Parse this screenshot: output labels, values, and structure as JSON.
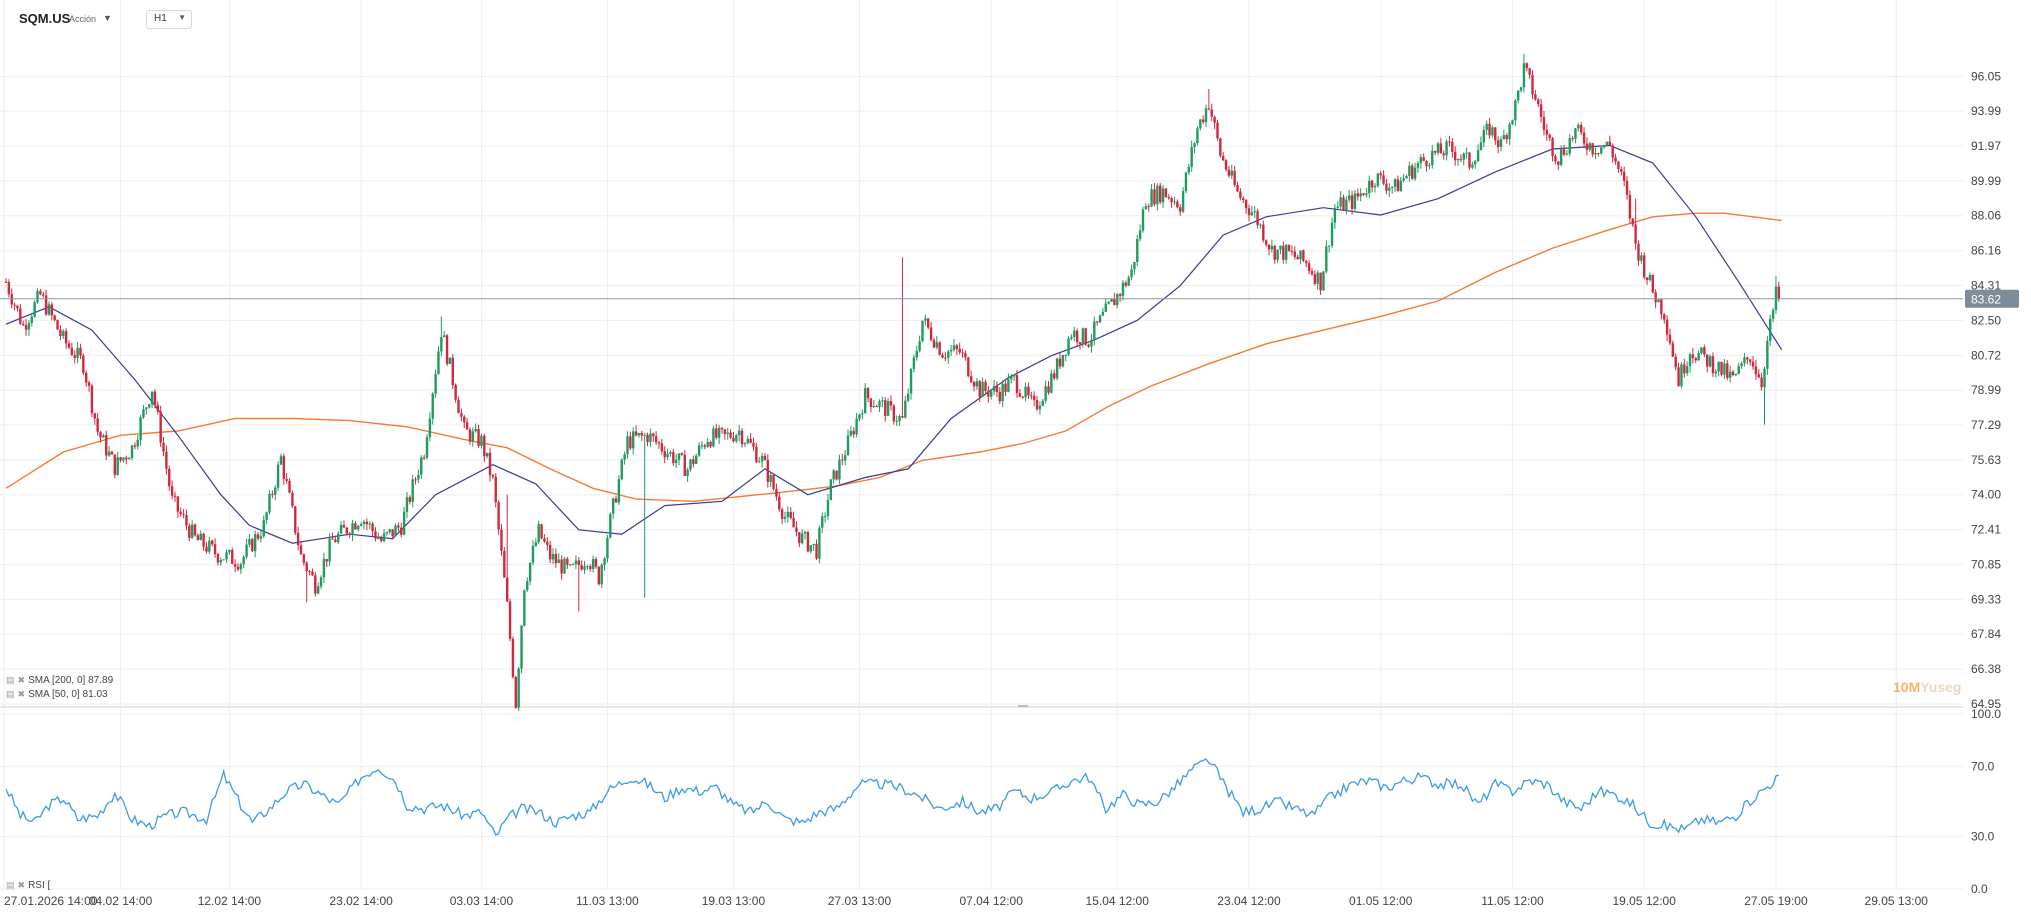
{
  "header": {
    "symbol": "SQM.US",
    "symbol_type": "Acción",
    "timeframe": "H1"
  },
  "watermark": {
    "prefix": "10M",
    "suffix": "Yuseg"
  },
  "colors": {
    "bull": "#1f9b5f",
    "bear": "#d1283e",
    "sma200": "#f47b35",
    "sma50": "#3b3b8f",
    "rsi": "#3d9ae8",
    "price_tag_bg": "#7f8c99",
    "grid": "#eeeeee"
  },
  "chart_data": [
    {
      "type": "candlestick",
      "title": "",
      "x_ticks": [
        "27.01.2026 14:00",
        "04.02 14:00",
        "12.02 14:00",
        "23.02 14:00",
        "03.03 14:00",
        "11.03 13:00",
        "19.03 13:00",
        "27.03 13:00",
        "07.04 12:00",
        "15.04 12:00",
        "23.04 12:00",
        "01.05 12:00",
        "11.05 12:00",
        "19.05 12:00",
        "27.05 19:00",
        "29.05 13:00"
      ],
      "y_ticks": [
        96.05,
        93.99,
        91.97,
        89.99,
        88.06,
        86.16,
        84.31,
        82.5,
        80.72,
        78.99,
        77.29,
        75.63,
        74.0,
        72.41,
        70.85,
        69.33,
        67.84,
        66.38,
        64.95
      ],
      "ylim": [
        64.95,
        97.4
      ],
      "log_scale": true,
      "last_price": 83.62,
      "grid": true,
      "close_path": [
        [
          0,
          84.5
        ],
        [
          6,
          82.2
        ],
        [
          12,
          83.8
        ],
        [
          20,
          81.5
        ],
        [
          27,
          80.3
        ],
        [
          32,
          77.0
        ],
        [
          38,
          75.3
        ],
        [
          44,
          76.2
        ],
        [
          51,
          79.1
        ],
        [
          58,
          73.7
        ],
        [
          66,
          72.0
        ],
        [
          74,
          71.3
        ],
        [
          82,
          71.0
        ],
        [
          90,
          72.6
        ],
        [
          96,
          75.7
        ],
        [
          103,
          71.2
        ],
        [
          108,
          70.0
        ],
        [
          114,
          71.9
        ],
        [
          124,
          73.0
        ],
        [
          131,
          71.9
        ],
        [
          138,
          72.6
        ],
        [
          146,
          76.1
        ],
        [
          152,
          82.0
        ],
        [
          160,
          77.0
        ],
        [
          166,
          76.5
        ],
        [
          170,
          74.6
        ],
        [
          175,
          69.0
        ],
        [
          178,
          65.0
        ],
        [
          181,
          70.0
        ],
        [
          186,
          72.3
        ],
        [
          190,
          71.2
        ],
        [
          197,
          70.5
        ],
        [
          203,
          71.2
        ],
        [
          207,
          70.3
        ],
        [
          211,
          72.8
        ],
        [
          217,
          76.5
        ],
        [
          224,
          76.8
        ],
        [
          231,
          76.0
        ],
        [
          238,
          75.2
        ],
        [
          245,
          76.7
        ],
        [
          251,
          76.7
        ],
        [
          256,
          77.0
        ],
        [
          264,
          75.6
        ],
        [
          272,
          73.0
        ],
        [
          278,
          72.0
        ],
        [
          283,
          71.5
        ],
        [
          288,
          74.4
        ],
        [
          294,
          76.4
        ],
        [
          300,
          78.7
        ],
        [
          306,
          78.2
        ],
        [
          313,
          77.5
        ],
        [
          320,
          82.5
        ],
        [
          327,
          80.9
        ],
        [
          333,
          80.9
        ],
        [
          340,
          79.0
        ],
        [
          347,
          78.9
        ],
        [
          352,
          79.5
        ],
        [
          359,
          78.1
        ],
        [
          366,
          79.8
        ],
        [
          372,
          81.9
        ],
        [
          378,
          81.5
        ],
        [
          384,
          82.9
        ],
        [
          389,
          84.0
        ],
        [
          393,
          85.0
        ],
        [
          398,
          89.0
        ],
        [
          404,
          89.4
        ],
        [
          410,
          88.7
        ],
        [
          416,
          93.0
        ],
        [
          420,
          94.5
        ],
        [
          424,
          91.5
        ],
        [
          430,
          89.3
        ],
        [
          436,
          88.1
        ],
        [
          442,
          86.2
        ],
        [
          448,
          86.0
        ],
        [
          454,
          85.5
        ],
        [
          459,
          84.5
        ],
        [
          464,
          88.5
        ],
        [
          471,
          88.9
        ],
        [
          478,
          90.2
        ],
        [
          485,
          89.6
        ],
        [
          490,
          90.5
        ],
        [
          497,
          91.4
        ],
        [
          504,
          91.8
        ],
        [
          511,
          91.0
        ],
        [
          518,
          93.0
        ],
        [
          522,
          92.0
        ],
        [
          527,
          94.3
        ],
        [
          530,
          96.5
        ],
        [
          534,
          94.8
        ],
        [
          538,
          92.5
        ],
        [
          542,
          91.3
        ],
        [
          548,
          92.8
        ],
        [
          554,
          91.9
        ],
        [
          560,
          92.0
        ],
        [
          565,
          89.7
        ],
        [
          569,
          86.5
        ],
        [
          575,
          84.0
        ],
        [
          579,
          82.9
        ],
        [
          584,
          79.5
        ],
        [
          588,
          81.0
        ],
        [
          596,
          80.3
        ],
        [
          603,
          79.5
        ],
        [
          609,
          80.7
        ],
        [
          613,
          79.4
        ],
        [
          615,
          81.4
        ],
        [
          618,
          83.8
        ],
        [
          619,
          83.62
        ]
      ],
      "wicks": [
        [
          178,
          64.95
        ],
        [
          175,
          74.0
        ],
        [
          152,
          82.7
        ],
        [
          313,
          85.8
        ],
        [
          530,
          97.4
        ],
        [
          569,
          89.0
        ],
        [
          614,
          77.3
        ],
        [
          618,
          84.8
        ],
        [
          420,
          95.3
        ],
        [
          223,
          69.4
        ],
        [
          105,
          69.2
        ],
        [
          200,
          68.8
        ]
      ]
    },
    {
      "type": "line",
      "series": [
        {
          "name": "SMA [200, 0]",
          "last_value": 87.89,
          "x_y": [
            [
              0,
              74.3
            ],
            [
              20,
              76.0
            ],
            [
              40,
              76.8
            ],
            [
              60,
              77.0
            ],
            [
              80,
              77.6
            ],
            [
              100,
              77.6
            ],
            [
              120,
              77.5
            ],
            [
              140,
              77.2
            ],
            [
              160,
              76.6
            ],
            [
              175,
              76.2
            ],
            [
              190,
              75.2
            ],
            [
              205,
              74.3
            ],
            [
              220,
              73.8
            ],
            [
              240,
              73.7
            ],
            [
              255,
              73.9
            ],
            [
              270,
              74.1
            ],
            [
              290,
              74.4
            ],
            [
              305,
              74.8
            ],
            [
              320,
              75.6
            ],
            [
              340,
              76.0
            ],
            [
              355,
              76.4
            ],
            [
              370,
              77.0
            ],
            [
              385,
              78.2
            ],
            [
              400,
              79.2
            ],
            [
              420,
              80.3
            ],
            [
              440,
              81.3
            ],
            [
              460,
              82.0
            ],
            [
              480,
              82.7
            ],
            [
              500,
              83.5
            ],
            [
              520,
              85.0
            ],
            [
              540,
              86.3
            ],
            [
              560,
              87.3
            ],
            [
              575,
              88.0
            ],
            [
              590,
              88.2
            ],
            [
              600,
              88.2
            ],
            [
              610,
              88.0
            ],
            [
              620,
              87.8
            ]
          ]
        },
        {
          "name": "SMA [50, 0]",
          "last_value": 81.03,
          "x_y": [
            [
              0,
              82.3
            ],
            [
              15,
              83.2
            ],
            [
              30,
              82.0
            ],
            [
              45,
              79.5
            ],
            [
              60,
              76.8
            ],
            [
              75,
              74.0
            ],
            [
              85,
              72.6
            ],
            [
              100,
              71.8
            ],
            [
              120,
              72.2
            ],
            [
              135,
              72.0
            ],
            [
              150,
              74.0
            ],
            [
              170,
              75.4
            ],
            [
              185,
              74.5
            ],
            [
              200,
              72.4
            ],
            [
              215,
              72.2
            ],
            [
              230,
              73.5
            ],
            [
              250,
              73.7
            ],
            [
              265,
              75.2
            ],
            [
              280,
              74.0
            ],
            [
              300,
              74.8
            ],
            [
              315,
              75.2
            ],
            [
              330,
              77.6
            ],
            [
              350,
              79.6
            ],
            [
              365,
              80.7
            ],
            [
              380,
              81.5
            ],
            [
              395,
              82.5
            ],
            [
              410,
              84.3
            ],
            [
              425,
              87.0
            ],
            [
              440,
              88.0
            ],
            [
              460,
              88.5
            ],
            [
              480,
              88.1
            ],
            [
              500,
              89.0
            ],
            [
              520,
              90.5
            ],
            [
              540,
              91.8
            ],
            [
              560,
              92.0
            ],
            [
              575,
              91.0
            ],
            [
              590,
              88.0
            ],
            [
              605,
              84.5
            ],
            [
              620,
              81.0
            ]
          ]
        }
      ]
    },
    {
      "type": "line",
      "series": [
        {
          "name": "RSI [",
          "x_y": [
            [
              0,
              58
            ],
            [
              5,
              42
            ],
            [
              10,
              38
            ],
            [
              15,
              48
            ],
            [
              20,
              52
            ],
            [
              25,
              40
            ],
            [
              32,
              42
            ],
            [
              38,
              55
            ],
            [
              44,
              40
            ],
            [
              50,
              36
            ],
            [
              56,
              42
            ],
            [
              62,
              44
            ],
            [
              70,
              40
            ],
            [
              76,
              65
            ],
            [
              82,
              48
            ],
            [
              86,
              38
            ],
            [
              92,
              46
            ],
            [
              98,
              56
            ],
            [
              104,
              60
            ],
            [
              110,
              54
            ],
            [
              116,
              48
            ],
            [
              124,
              64
            ],
            [
              130,
              70
            ],
            [
              136,
              62
            ],
            [
              140,
              48
            ],
            [
              146,
              46
            ],
            [
              152,
              48
            ],
            [
              160,
              42
            ],
            [
              166,
              44
            ],
            [
              171,
              30
            ],
            [
              175,
              40
            ],
            [
              180,
              46
            ],
            [
              186,
              44
            ],
            [
              192,
              38
            ],
            [
              198,
              42
            ],
            [
              204,
              44
            ],
            [
              210,
              56
            ],
            [
              218,
              64
            ],
            [
              224,
              60
            ],
            [
              230,
              52
            ],
            [
              236,
              58
            ],
            [
              242,
              56
            ],
            [
              248,
              58
            ],
            [
              254,
              48
            ],
            [
              260,
              44
            ],
            [
              266,
              50
            ],
            [
              272,
              40
            ],
            [
              278,
              38
            ],
            [
              284,
              44
            ],
            [
              290,
              46
            ],
            [
              298,
              60
            ],
            [
              306,
              60
            ],
            [
              312,
              58
            ],
            [
              318,
              54
            ],
            [
              326,
              46
            ],
            [
              334,
              50
            ],
            [
              340,
              44
            ],
            [
              346,
              46
            ],
            [
              352,
              56
            ],
            [
              358,
              52
            ],
            [
              366,
              56
            ],
            [
              372,
              62
            ],
            [
              378,
              64
            ],
            [
              384,
              46
            ],
            [
              390,
              54
            ],
            [
              396,
              48
            ],
            [
              402,
              50
            ],
            [
              408,
              58
            ],
            [
              414,
              68
            ],
            [
              420,
              74
            ],
            [
              426,
              58
            ],
            [
              432,
              44
            ],
            [
              438,
              46
            ],
            [
              444,
              50
            ],
            [
              450,
              46
            ],
            [
              456,
              42
            ],
            [
              462,
              52
            ],
            [
              470,
              60
            ],
            [
              476,
              62
            ],
            [
              482,
              58
            ],
            [
              488,
              62
            ],
            [
              494,
              64
            ],
            [
              500,
              60
            ],
            [
              508,
              60
            ],
            [
              514,
              48
            ],
            [
              520,
              60
            ],
            [
              526,
              56
            ],
            [
              532,
              62
            ],
            [
              538,
              60
            ],
            [
              544,
              50
            ],
            [
              550,
              46
            ],
            [
              556,
              56
            ],
            [
              562,
              54
            ],
            [
              568,
              48
            ],
            [
              574,
              38
            ],
            [
              580,
              36
            ],
            [
              586,
              34
            ],
            [
              592,
              40
            ],
            [
              598,
              38
            ],
            [
              604,
              42
            ],
            [
              610,
              52
            ],
            [
              616,
              60
            ],
            [
              619,
              65
            ]
          ]
        }
      ],
      "ylim": [
        0,
        100
      ],
      "y_ticks": [
        100.0,
        70.0,
        30.0,
        0.0
      ]
    }
  ]
}
